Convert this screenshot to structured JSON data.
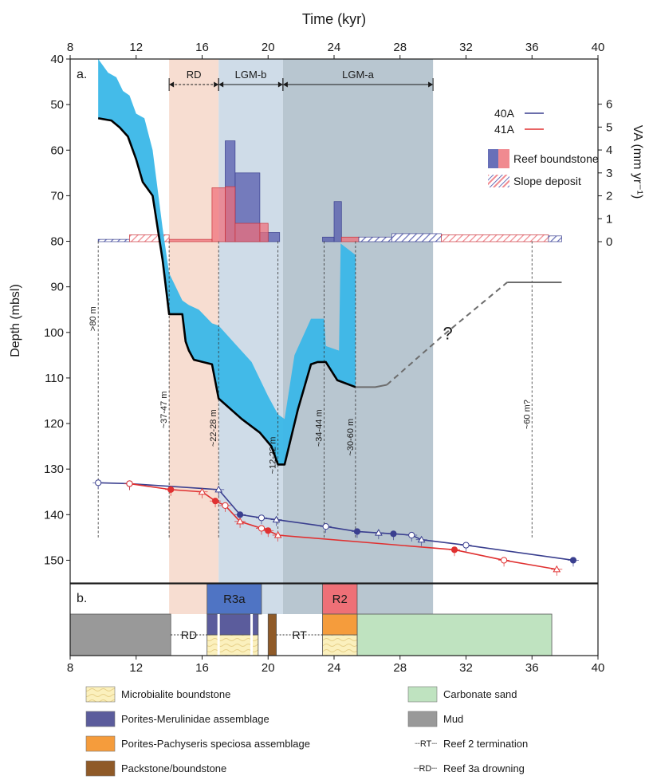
{
  "chart_data": [
    {
      "panel": "a.",
      "type": "line",
      "title": "Time (kyr)",
      "xlabel": "Time (kyr)",
      "ylabel": "Depth (mbsl)",
      "y2label": "VA (mm yr⁻¹)",
      "xlim": [
        8,
        40
      ],
      "ylim": [
        40,
        155
      ],
      "y_inverted": true,
      "y2lim": [
        0,
        6.5
      ],
      "xticks": [
        8,
        12,
        16,
        20,
        24,
        28,
        32,
        36,
        40
      ],
      "yticks": [
        40,
        50,
        60,
        70,
        80,
        90,
        100,
        110,
        120,
        130,
        140,
        150
      ],
      "y2ticks": [
        0,
        1,
        2,
        3,
        4,
        5,
        6
      ],
      "periods": [
        {
          "label": "RD",
          "x": [
            14.0,
            17.0
          ],
          "color": "#f7ddd1"
        },
        {
          "label": "LGM-b",
          "x": [
            17.0,
            20.9
          ],
          "color": "#cfdce8"
        },
        {
          "label": "LGM-a",
          "x": [
            20.9,
            30.0
          ],
          "color": "#b8c6d0"
        }
      ],
      "sea_level_curve": {
        "x": [
          9.7,
          10.5,
          11.0,
          11.5,
          12.0,
          12.4,
          13.0,
          13.6,
          14.0,
          14.8,
          15.0,
          15.2,
          15.5,
          16.6,
          17.0,
          18.4,
          19.5,
          20.2,
          20.6,
          21.0,
          21.8,
          22.6,
          23.0,
          23.5,
          24.2,
          25.3
        ],
        "y": [
          53,
          53.5,
          55,
          57,
          62,
          67,
          70,
          84,
          96,
          96,
          102,
          104,
          106,
          107,
          114.5,
          119,
          122,
          125,
          129,
          129,
          117,
          107,
          106.5,
          106.5,
          110.5,
          112
        ],
        "color": "#000000"
      },
      "sea_level_extension": {
        "x": [
          25.3,
          26.5,
          27.2
        ],
        "y": [
          112,
          112,
          111.5
        ],
        "color": "#6d6d6d"
      },
      "uncertainty_band_top": {
        "x": [
          9.7,
          10.3,
          10.8,
          11.2,
          11.6,
          12.0,
          12.5,
          13.0,
          13.6,
          14.0,
          14.8,
          15.2,
          15.8,
          16.6,
          17.0,
          18.0,
          19.0,
          20.0,
          20.6,
          21.0,
          21.6,
          22.6,
          23.4,
          23.5,
          24.3,
          24.4,
          25.3
        ],
        "y": [
          40,
          43,
          44,
          47,
          48,
          52,
          53,
          60,
          77,
          87,
          93,
          94,
          95,
          98,
          98.5,
          102.5,
          106.5,
          114,
          118,
          119,
          105,
          97,
          97,
          103,
          104,
          80.5,
          83
        ],
        "color": "#3ab7e8"
      },
      "question_mark_path": {
        "x": [
          27.2,
          30.5,
          34.5,
          37.8
        ],
        "y": [
          111.5,
          101,
          89,
          89
        ],
        "annotation": "?",
        "annotation_at": [
          30.5,
          101.5
        ]
      },
      "accommodation_markers": [
        {
          "x": 9.7,
          "label": ">80 m"
        },
        {
          "x": 14.0,
          "label": "~37-47 m"
        },
        {
          "x": 17.0,
          "label": "~22-28 m"
        },
        {
          "x": 20.6,
          "label": "~12-22 m"
        },
        {
          "x": 23.4,
          "label": "~34-44 m"
        },
        {
          "x": 25.3,
          "label": "~30-60 m"
        },
        {
          "x": 36.0,
          "label": "~60 m?"
        }
      ],
      "series": [
        {
          "name": "40A",
          "color": "#3a3f8f",
          "x": [
            9.7,
            11.6,
            17.0,
            18.3,
            19.6,
            20.5,
            23.5,
            25.4,
            26.7,
            27.6,
            28.7,
            29.3,
            32.0,
            38.5
          ],
          "y": [
            133,
            133.2,
            134.5,
            140,
            140.7,
            141.1,
            142.6,
            143.7,
            144,
            144.2,
            144.5,
            145.5,
            146.7,
            150
          ]
        },
        {
          "name": "41A",
          "color": "#e03131",
          "x": [
            11.6,
            14.1,
            16.0,
            16.8,
            17.4,
            18.3,
            19.6,
            20.0,
            20.6,
            31.3,
            34.3,
            37.5
          ],
          "y": [
            133.2,
            134.5,
            135,
            137,
            138,
            141.5,
            143,
            143.5,
            144.5,
            147.7,
            150,
            152
          ]
        }
      ],
      "va_bars": [
        {
          "well": "40A",
          "kind": "Reef boundstone",
          "x": [
            18.0,
            19.5
          ],
          "va": 3.0
        },
        {
          "well": "40A",
          "kind": "Reef boundstone",
          "x": [
            17.4,
            18.0
          ],
          "va": 4.4
        },
        {
          "well": "40A",
          "kind": "Reef boundstone",
          "x": [
            19.5,
            20.7
          ],
          "va": 0.4
        },
        {
          "well": "40A",
          "kind": "Reef boundstone",
          "x": [
            24.0,
            24.45
          ],
          "va": 1.75
        },
        {
          "well": "40A",
          "kind": "Reef boundstone",
          "x": [
            23.3,
            24.0
          ],
          "va": 0.2
        },
        {
          "well": "41A",
          "kind": "Reef boundstone",
          "x": [
            16.6,
            17.4
          ],
          "va": 2.35
        },
        {
          "well": "41A",
          "kind": "Reef boundstone",
          "x": [
            17.4,
            18.0
          ],
          "va": 2.4
        },
        {
          "well": "41A",
          "kind": "Reef boundstone",
          "x": [
            18.0,
            19.5
          ],
          "va": 0.8
        },
        {
          "well": "41A",
          "kind": "Reef boundstone",
          "x": [
            19.5,
            20.0
          ],
          "va": 0.8
        },
        {
          "well": "41A",
          "kind": "Reef boundstone",
          "x": [
            14.0,
            16.6
          ],
          "va": 0.1
        },
        {
          "well": "41A",
          "kind": "Reef boundstone",
          "x": [
            24.45,
            25.5
          ],
          "va": 0.2
        },
        {
          "well": "40A",
          "kind": "Slope deposit",
          "x": [
            9.7,
            11.6
          ],
          "va": 0.1
        },
        {
          "well": "41A",
          "kind": "Slope deposit",
          "x": [
            11.6,
            14.0
          ],
          "va": 0.3
        },
        {
          "well": "40A",
          "kind": "Slope deposit",
          "x": [
            25.5,
            27.5
          ],
          "va": 0.2
        },
        {
          "well": "40A",
          "kind": "Slope deposit",
          "x": [
            27.5,
            30.5
          ],
          "va": 0.35
        },
        {
          "well": "41A",
          "kind": "Slope deposit",
          "x": [
            30.5,
            37.0
          ],
          "va": 0.3
        },
        {
          "well": "40A",
          "kind": "Slope deposit",
          "x": [
            37.0,
            37.8
          ],
          "va": 0.25
        }
      ],
      "legend": {
        "placement": "top-right",
        "entries": [
          {
            "label": "40A",
            "color": "#3a3f8f"
          },
          {
            "label": "41A",
            "color": "#e03131"
          },
          {
            "label": "Reef boundstone",
            "colors": [
              "#6870b8",
              "#f08a90"
            ]
          },
          {
            "label": "Slope deposit",
            "colors": [
              "#6870b8",
              "#f08a90"
            ]
          }
        ]
      }
    },
    {
      "panel": "b.",
      "type": "table",
      "xlim": [
        8,
        40
      ],
      "xticks": [
        8,
        12,
        16,
        20,
        24,
        28,
        32,
        36,
        40
      ],
      "facies": [
        {
          "label": "Mud",
          "x": [
            8.0,
            14.1
          ],
          "color": "#999999"
        },
        {
          "label": "Carbonate sand",
          "x": [
            25.4,
            37.2
          ],
          "color": "#bfe3c0"
        },
        {
          "label": "Packstone/boundstone",
          "x": [
            20.0,
            20.5
          ],
          "color": "#8f5a28"
        },
        {
          "label": "Microbialite boundstone",
          "x": [
            16.3,
            19.4
          ],
          "color": "#fbf0bd"
        },
        {
          "label": "Porites-Merulinidae assemblage",
          "x": [
            16.3,
            19.4
          ],
          "color": "#5b5c9c"
        },
        {
          "label": "Microbialite boundstone",
          "x": [
            23.3,
            25.4
          ],
          "color": "#fbf0bd"
        },
        {
          "label": "Porites-Pachyseris speciosa assemblage",
          "x": [
            23.3,
            25.4
          ],
          "color": "#f59c3c"
        }
      ],
      "units": [
        {
          "label": "R3a",
          "x": [
            16.3,
            19.6
          ],
          "color": "#4f74c4"
        },
        {
          "label": "R2",
          "x": [
            23.3,
            25.4
          ],
          "color": "#ee7077"
        }
      ],
      "event_markers": [
        {
          "label": "RD",
          "x": [
            14.1,
            16.3
          ]
        },
        {
          "label": "RT",
          "x": [
            20.5,
            23.3
          ]
        }
      ],
      "periods_shaded": [
        {
          "x": [
            14.0,
            17.0
          ],
          "color": "#f7ddd1"
        },
        {
          "x": [
            17.0,
            20.9
          ],
          "color": "#cfdce8"
        },
        {
          "x": [
            20.9,
            30.0
          ],
          "color": "#b8c6d0"
        }
      ]
    }
  ],
  "legend_items": [
    {
      "label": "Microbialite boundstone",
      "swatch": "microbialite"
    },
    {
      "label": "Porites-Merulinidae assemblage",
      "swatch": "#5b5c9c"
    },
    {
      "label": "Porites-Pachyseris speciosa assemblage",
      "swatch": "#f59c3c"
    },
    {
      "label": "Packstone/boundstone",
      "swatch": "#8f5a28"
    },
    {
      "label": "Carbonate sand",
      "swatch": "#bfe3c0"
    },
    {
      "label": "Mud",
      "swatch": "#999999"
    },
    {
      "label": "Reef 2 termination",
      "symbol": "RT"
    },
    {
      "label": "Reef 3a drowning",
      "symbol": "RD"
    }
  ]
}
